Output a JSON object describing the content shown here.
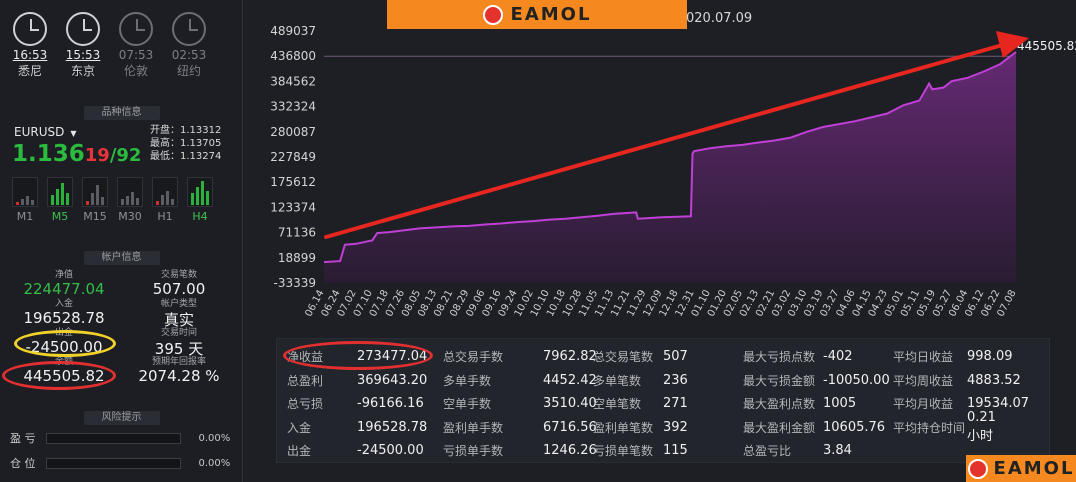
{
  "clocks": [
    {
      "time": "16:53",
      "city": "悉尼",
      "active": true
    },
    {
      "time": "15:53",
      "city": "东京",
      "active": true
    },
    {
      "time": "07:53",
      "city": "伦敦",
      "active": false
    },
    {
      "time": "02:53",
      "city": "纽约",
      "active": false
    }
  ],
  "sections": {
    "quote": "品种信息",
    "account": "帐户信息",
    "risk": "风险提示"
  },
  "quote": {
    "symbol": "EURUSD",
    "price_main": "1.136",
    "price_pip": "19",
    "price_sep": "/",
    "price_pip2": "92",
    "open": "开盘：1.13312",
    "high": "最高：1.13705",
    "low": "最低：1.13274"
  },
  "timeframes": [
    "M1",
    "M5",
    "M15",
    "M30",
    "H1",
    "H4"
  ],
  "account": {
    "equity_label": "净值",
    "equity": "224477.04",
    "trades_label": "交易笔数",
    "trades": "507.00",
    "deposit_label": "入金",
    "deposit": "196528.78",
    "type_label": "帐户类型",
    "type": "真实",
    "withdraw_label": "出金",
    "withdraw": "-24500.00",
    "days_label": "交易时间",
    "days": "395 天",
    "balance_label": "余额",
    "balance": "445505.82",
    "yield_label": "预期年回报率",
    "yield": "2074.28 %"
  },
  "risk": [
    {
      "label": "盈 亏",
      "value": "0.00%"
    },
    {
      "label": "仓 位",
      "value": "0.00%"
    }
  ],
  "brand": "EAMOL",
  "date_label": "020.07.09",
  "colors": {
    "accent": "#f5891f",
    "line": "#c03fd6",
    "fill": "#5a2566",
    "arrow": "#e7261f",
    "highlight_red": "#e23030",
    "highlight_yellow": "#f0d22a"
  },
  "chart_data": {
    "type": "area",
    "title": "",
    "xlabel": "",
    "ylabel": "",
    "yticks": [
      489037,
      436800,
      384562,
      332324,
      280087,
      227849,
      175612,
      123374,
      71136,
      18899,
      -33339
    ],
    "ylim": [
      -33339,
      489037
    ],
    "xticks": [
      "06.14",
      "06.24",
      "07.02",
      "07.10",
      "07.18",
      "07.26",
      "08.05",
      "08.13",
      "08.21",
      "08.29",
      "09.06",
      "09.16",
      "09.24",
      "10.02",
      "10.10",
      "10.18",
      "10.28",
      "11.05",
      "11.13",
      "11.21",
      "11.29",
      "12.09",
      "12.18",
      "12.31",
      "01.10",
      "01.20",
      "02.05",
      "02.13",
      "02.21",
      "03.02",
      "03.10",
      "03.19",
      "03.27",
      "04.06",
      "04.15",
      "04.23",
      "05.01",
      "05.11",
      "05.19",
      "05.27",
      "06.04",
      "06.12",
      "06.22",
      "07.08"
    ],
    "series": [
      {
        "values": [
          [
            0,
            10000
          ],
          [
            1,
            12000
          ],
          [
            1.3,
            46000
          ],
          [
            2,
            48000
          ],
          [
            3,
            55000
          ],
          [
            3.3,
            70000
          ],
          [
            4,
            72000
          ],
          [
            5,
            76000
          ],
          [
            6,
            80000
          ],
          [
            7,
            82000
          ],
          [
            8,
            84000
          ],
          [
            9,
            85000
          ],
          [
            10,
            88000
          ],
          [
            11,
            90000
          ],
          [
            12,
            93000
          ],
          [
            13,
            95000
          ],
          [
            14,
            98000
          ],
          [
            15,
            100000
          ],
          [
            16,
            103000
          ],
          [
            17,
            106000
          ],
          [
            18,
            110000
          ],
          [
            19.4,
            113000
          ],
          [
            19.5,
            100000
          ],
          [
            20,
            101000
          ],
          [
            21,
            103000
          ],
          [
            22,
            104000
          ],
          [
            22.8,
            105000
          ],
          [
            22.9,
            235000
          ],
          [
            23,
            240000
          ],
          [
            24,
            246000
          ],
          [
            25,
            250000
          ],
          [
            26,
            253000
          ],
          [
            27,
            258000
          ],
          [
            28,
            262000
          ],
          [
            29,
            268000
          ],
          [
            30,
            280000
          ],
          [
            31,
            290000
          ],
          [
            32,
            296000
          ],
          [
            33,
            302000
          ],
          [
            34,
            310000
          ],
          [
            35,
            318000
          ],
          [
            36,
            335000
          ],
          [
            37,
            345000
          ],
          [
            37.6,
            380000
          ],
          [
            37.8,
            368000
          ],
          [
            38.5,
            372000
          ],
          [
            39,
            385000
          ],
          [
            40,
            392000
          ],
          [
            41,
            405000
          ],
          [
            42,
            420000
          ],
          [
            43,
            445505.82
          ]
        ]
      }
    ],
    "last_value_label": "445505.82",
    "grid": false
  },
  "stats": {
    "col1": [
      {
        "k": "净收益",
        "v": "273477.04"
      },
      {
        "k": "总盈利",
        "v": "369643.20"
      },
      {
        "k": "总亏损",
        "v": "-96166.16"
      },
      {
        "k": "入金",
        "v": "196528.78"
      },
      {
        "k": "出金",
        "v": "-24500.00"
      }
    ],
    "col2": [
      {
        "k": "总交易手数",
        "v": "7962.82"
      },
      {
        "k": "多单手数",
        "v": "4452.42"
      },
      {
        "k": "空单手数",
        "v": "3510.40"
      },
      {
        "k": "盈利单手数",
        "v": "6716.56"
      },
      {
        "k": "亏损单手数",
        "v": "1246.26"
      }
    ],
    "col3": [
      {
        "k": "总交易笔数",
        "v": "507"
      },
      {
        "k": "多单笔数",
        "v": "236"
      },
      {
        "k": "空单笔数",
        "v": "271"
      },
      {
        "k": "盈利单笔数",
        "v": "392"
      },
      {
        "k": "亏损单笔数",
        "v": "115"
      }
    ],
    "col4": [
      {
        "k": "最大亏损点数",
        "v": "-402"
      },
      {
        "k": "最大亏损金额",
        "v": "-10050.00"
      },
      {
        "k": "最大盈利点数",
        "v": "1005"
      },
      {
        "k": "最大盈利金额",
        "v": "10605.76"
      },
      {
        "k": "总盈亏比",
        "v": "3.84"
      }
    ],
    "col5": [
      {
        "k": "平均日收益",
        "v": "998.09"
      },
      {
        "k": "平均周收益",
        "v": "4883.52"
      },
      {
        "k": "平均月收益",
        "v": "19534.07"
      },
      {
        "k": "平均持仓时间",
        "v": "0.21小时"
      }
    ]
  }
}
